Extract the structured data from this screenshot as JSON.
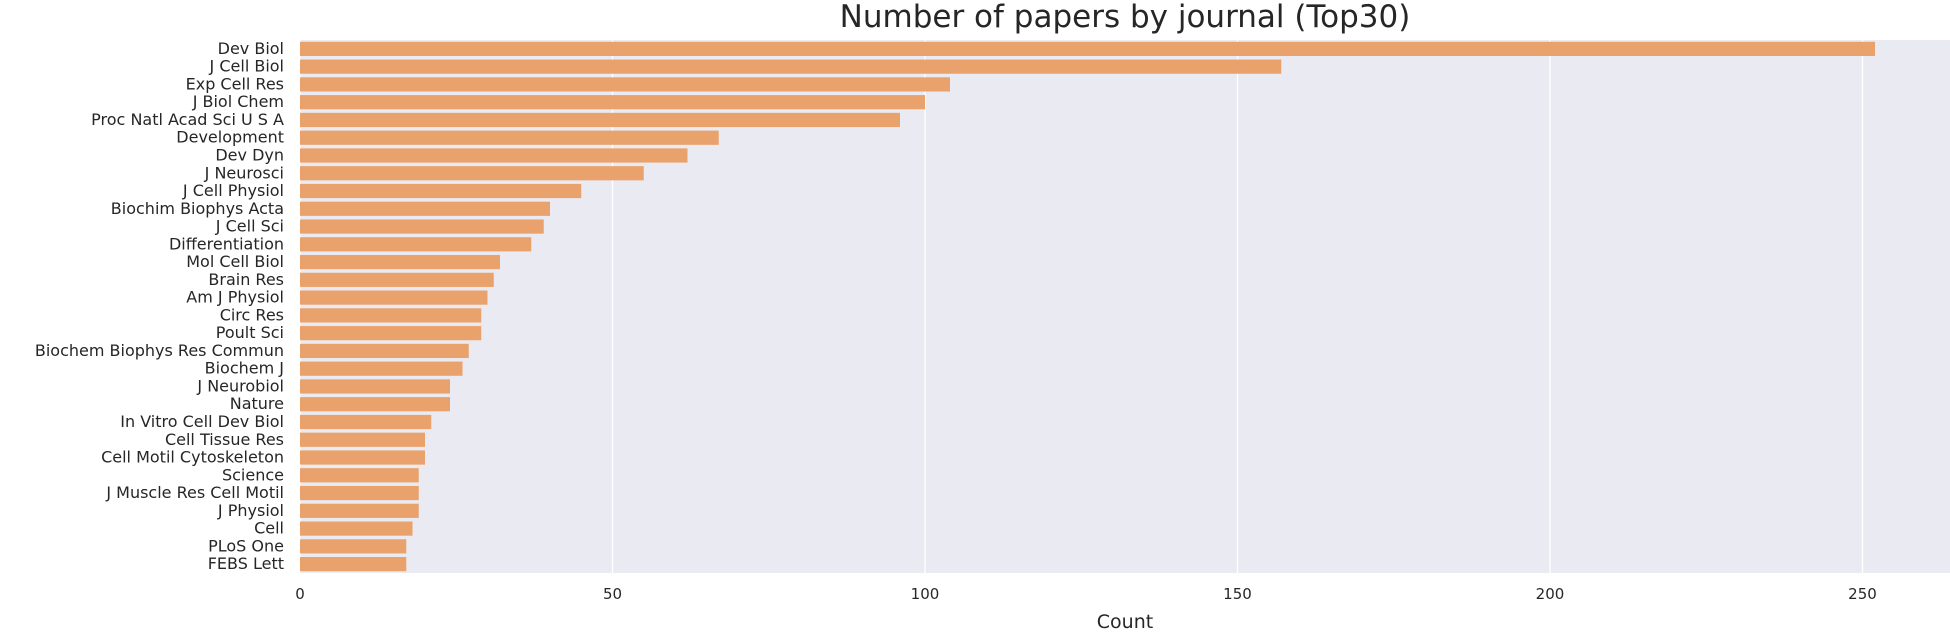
{
  "chart_data": {
    "type": "bar",
    "orientation": "horizontal",
    "title": "Number of papers by journal (Top30)",
    "xlabel": "Count",
    "ylabel": "",
    "xlim": [
      0,
      264
    ],
    "xticks": [
      0,
      50,
      100,
      150,
      200,
      250
    ],
    "grid": true,
    "bar_color": "#eaa26c",
    "plot_background": "#eaeaf2",
    "categories": [
      "Dev Biol",
      "J Cell Biol",
      "Exp Cell Res",
      "J Biol Chem",
      "Proc Natl Acad Sci U S A",
      "Development",
      "Dev Dyn",
      "J Neurosci",
      "J Cell Physiol",
      "Biochim Biophys Acta",
      "J Cell Sci",
      "Differentiation",
      "Mol Cell Biol",
      "Brain Res",
      "Am J Physiol",
      "Circ Res",
      "Poult Sci",
      "Biochem Biophys Res Commun",
      "Biochem J",
      "J Neurobiol",
      "Nature",
      "In Vitro Cell Dev Biol",
      "Cell Tissue Res",
      "Cell Motil Cytoskeleton",
      "Science",
      "J Muscle Res Cell Motil",
      "J Physiol",
      "Cell",
      "PLoS One",
      "FEBS Lett"
    ],
    "values": [
      252,
      157,
      104,
      100,
      96,
      67,
      62,
      55,
      45,
      40,
      39,
      37,
      32,
      31,
      30,
      29,
      29,
      27,
      26,
      24,
      24,
      21,
      20,
      20,
      19,
      19,
      19,
      18,
      17,
      17
    ]
  }
}
